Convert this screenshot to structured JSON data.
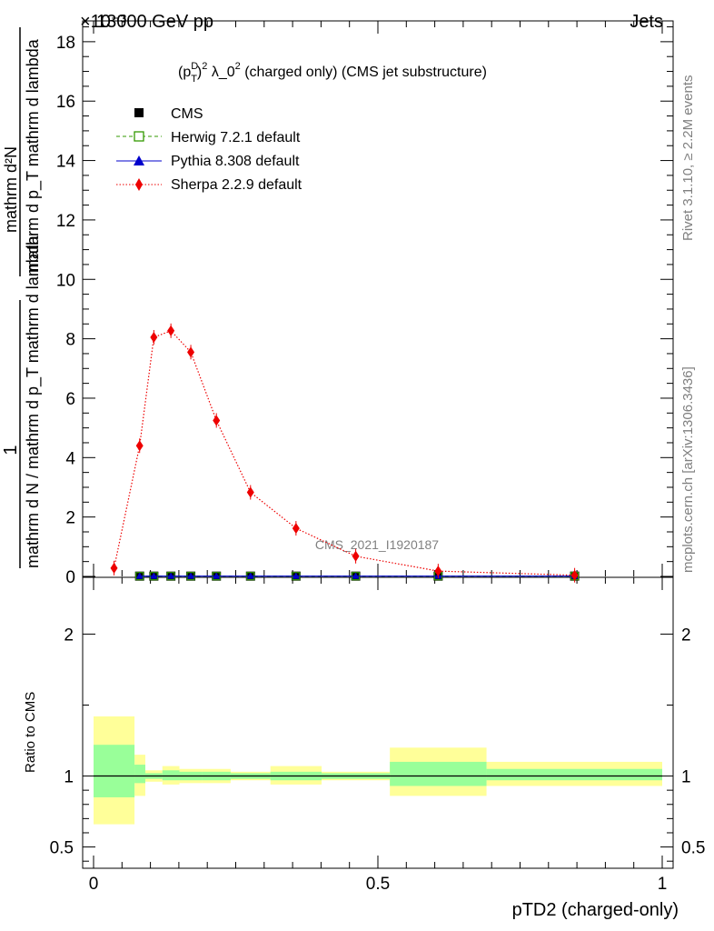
{
  "header": {
    "left_title": "13000 GeV pp",
    "right_title": "Jets",
    "exponent_label": "×10⁻³",
    "plot_title": "(p_T^D)^2 λ_0^2 (charged only) (CMS jet substructure)",
    "analysis_id": "CMS_2021_I1920187"
  },
  "side_labels": {
    "rivet": "Rivet 3.1.10, ≥ 2.2M events",
    "mcplots": "mcplots.cern.ch [arXiv:1306.3436]"
  },
  "y_label_top": {
    "numerator_1": "1",
    "denominator_1": "mathrm d N / mathrm d p_T mathrm d lambda",
    "numerator_2": "mathrm d²N",
    "denominator_2": "mathrm d p_T mathrm d lambda"
  },
  "chart_data": [
    {
      "type": "scatter",
      "panel": "main",
      "y_scale_note": "×10⁻³",
      "ylim": [
        0,
        18.7
      ],
      "xlim": [
        -0.02,
        1.02
      ],
      "y_ticks": [
        "0",
        "2",
        "4",
        "6",
        "8",
        "10",
        "12",
        "14",
        "16",
        "18"
      ],
      "series": [
        {
          "name": "CMS",
          "color": "#000000",
          "marker": "square",
          "x": [
            0.081,
            0.106,
            0.136,
            0.171,
            0.216,
            0.276,
            0.356,
            0.461,
            0.606,
            0.846
          ],
          "y": [
            0.01,
            0.01,
            0.01,
            0.01,
            0.01,
            0.01,
            0.01,
            0.01,
            0.01,
            0.01
          ]
        },
        {
          "name": "Herwig 7.2.1 default",
          "color": "#339900",
          "marker": "open-square",
          "line": "dashed",
          "x": [
            0.081,
            0.106,
            0.136,
            0.171,
            0.216,
            0.276,
            0.356,
            0.461,
            0.606,
            0.846
          ],
          "y": [
            0.01,
            0.01,
            0.01,
            0.01,
            0.01,
            0.01,
            0.01,
            0.01,
            0.01,
            0.01
          ]
        },
        {
          "name": "Pythia 8.308 default",
          "color": "#0000cc",
          "marker": "triangle",
          "line": "solid",
          "x": [
            0.081,
            0.106,
            0.136,
            0.171,
            0.216,
            0.276,
            0.356,
            0.461,
            0.606,
            0.846
          ],
          "y": [
            0.01,
            0.01,
            0.01,
            0.01,
            0.01,
            0.01,
            0.01,
            0.01,
            0.01,
            0.01
          ]
        },
        {
          "name": "Sherpa 2.2.9 default",
          "color": "#ee0000",
          "marker": "diamond",
          "line": "dotted",
          "x": [
            0.036,
            0.081,
            0.106,
            0.136,
            0.171,
            0.216,
            0.276,
            0.356,
            0.461,
            0.606,
            0.846
          ],
          "y": [
            0.28,
            4.4,
            8.05,
            8.27,
            7.55,
            5.25,
            2.83,
            1.62,
            0.68,
            0.18,
            0.04
          ]
        }
      ]
    },
    {
      "type": "area",
      "panel": "ratio",
      "ylabel": "Ratio to CMS",
      "ylim": [
        0.35,
        2.4
      ],
      "y_ticks": [
        "0.5",
        "1",
        "2"
      ],
      "x_ticks": [
        "0",
        "0.5",
        "1"
      ],
      "xlabel": "pTD2 (charged-only)",
      "bins": [
        {
          "x0": 0.0,
          "x1": 0.072,
          "inner": [
            0.85,
            1.22
          ],
          "outer": [
            0.66,
            1.42
          ]
        },
        {
          "x0": 0.072,
          "x1": 0.091,
          "inner": [
            0.95,
            1.08
          ],
          "outer": [
            0.86,
            1.15
          ]
        },
        {
          "x0": 0.091,
          "x1": 0.121,
          "inner": [
            0.98,
            1.02
          ],
          "outer": [
            0.96,
            1.04
          ]
        },
        {
          "x0": 0.121,
          "x1": 0.151,
          "inner": [
            0.97,
            1.04
          ],
          "outer": [
            0.94,
            1.07
          ]
        },
        {
          "x0": 0.151,
          "x1": 0.191,
          "inner": [
            0.97,
            1.03
          ],
          "outer": [
            0.95,
            1.05
          ]
        },
        {
          "x0": 0.191,
          "x1": 0.241,
          "inner": [
            0.97,
            1.03
          ],
          "outer": [
            0.95,
            1.05
          ]
        },
        {
          "x0": 0.241,
          "x1": 0.311,
          "inner": [
            0.98,
            1.02
          ],
          "outer": [
            0.97,
            1.03
          ]
        },
        {
          "x0": 0.311,
          "x1": 0.401,
          "inner": [
            0.97,
            1.03
          ],
          "outer": [
            0.94,
            1.07
          ]
        },
        {
          "x0": 0.401,
          "x1": 0.521,
          "inner": [
            0.98,
            1.02
          ],
          "outer": [
            0.97,
            1.03
          ]
        },
        {
          "x0": 0.521,
          "x1": 0.691,
          "inner": [
            0.93,
            1.1
          ],
          "outer": [
            0.86,
            1.2
          ]
        },
        {
          "x0": 0.691,
          "x1": 1.0,
          "inner": [
            0.97,
            1.05
          ],
          "outer": [
            0.93,
            1.1
          ]
        }
      ]
    }
  ]
}
